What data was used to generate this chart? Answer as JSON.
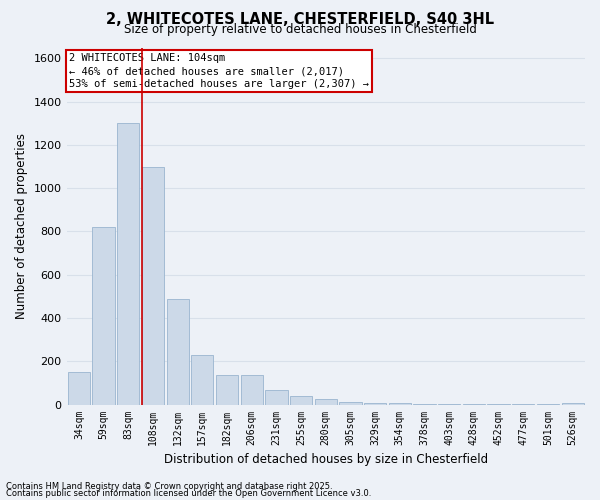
{
  "title": "2, WHITECOTES LANE, CHESTERFIELD, S40 3HL",
  "subtitle": "Size of property relative to detached houses in Chesterfield",
  "xlabel": "Distribution of detached houses by size in Chesterfield",
  "ylabel": "Number of detached properties",
  "bar_color": "#ccd9e8",
  "bar_edge_color": "#9ab5cf",
  "categories": [
    "34sqm",
    "59sqm",
    "83sqm",
    "108sqm",
    "132sqm",
    "157sqm",
    "182sqm",
    "206sqm",
    "231sqm",
    "255sqm",
    "280sqm",
    "305sqm",
    "329sqm",
    "354sqm",
    "378sqm",
    "403sqm",
    "428sqm",
    "452sqm",
    "477sqm",
    "501sqm",
    "526sqm"
  ],
  "values": [
    150,
    820,
    1300,
    1100,
    490,
    230,
    135,
    135,
    65,
    38,
    25,
    12,
    5,
    5,
    2,
    2,
    2,
    2,
    1,
    1,
    8
  ],
  "ylim": [
    0,
    1650
  ],
  "yticks": [
    0,
    200,
    400,
    600,
    800,
    1000,
    1200,
    1400,
    1600
  ],
  "vline_x": 2.57,
  "annotation_title": "2 WHITECOTES LANE: 104sqm",
  "annotation_line1": "← 46% of detached houses are smaller (2,017)",
  "annotation_line2": "53% of semi-detached houses are larger (2,307) →",
  "annotation_box_color": "#ffffff",
  "annotation_box_edge_color": "#cc0000",
  "vline_color": "#cc0000",
  "footer_line1": "Contains HM Land Registry data © Crown copyright and database right 2025.",
  "footer_line2": "Contains public sector information licensed under the Open Government Licence v3.0.",
  "background_color": "#edf1f7",
  "grid_color": "#d8e0ea"
}
